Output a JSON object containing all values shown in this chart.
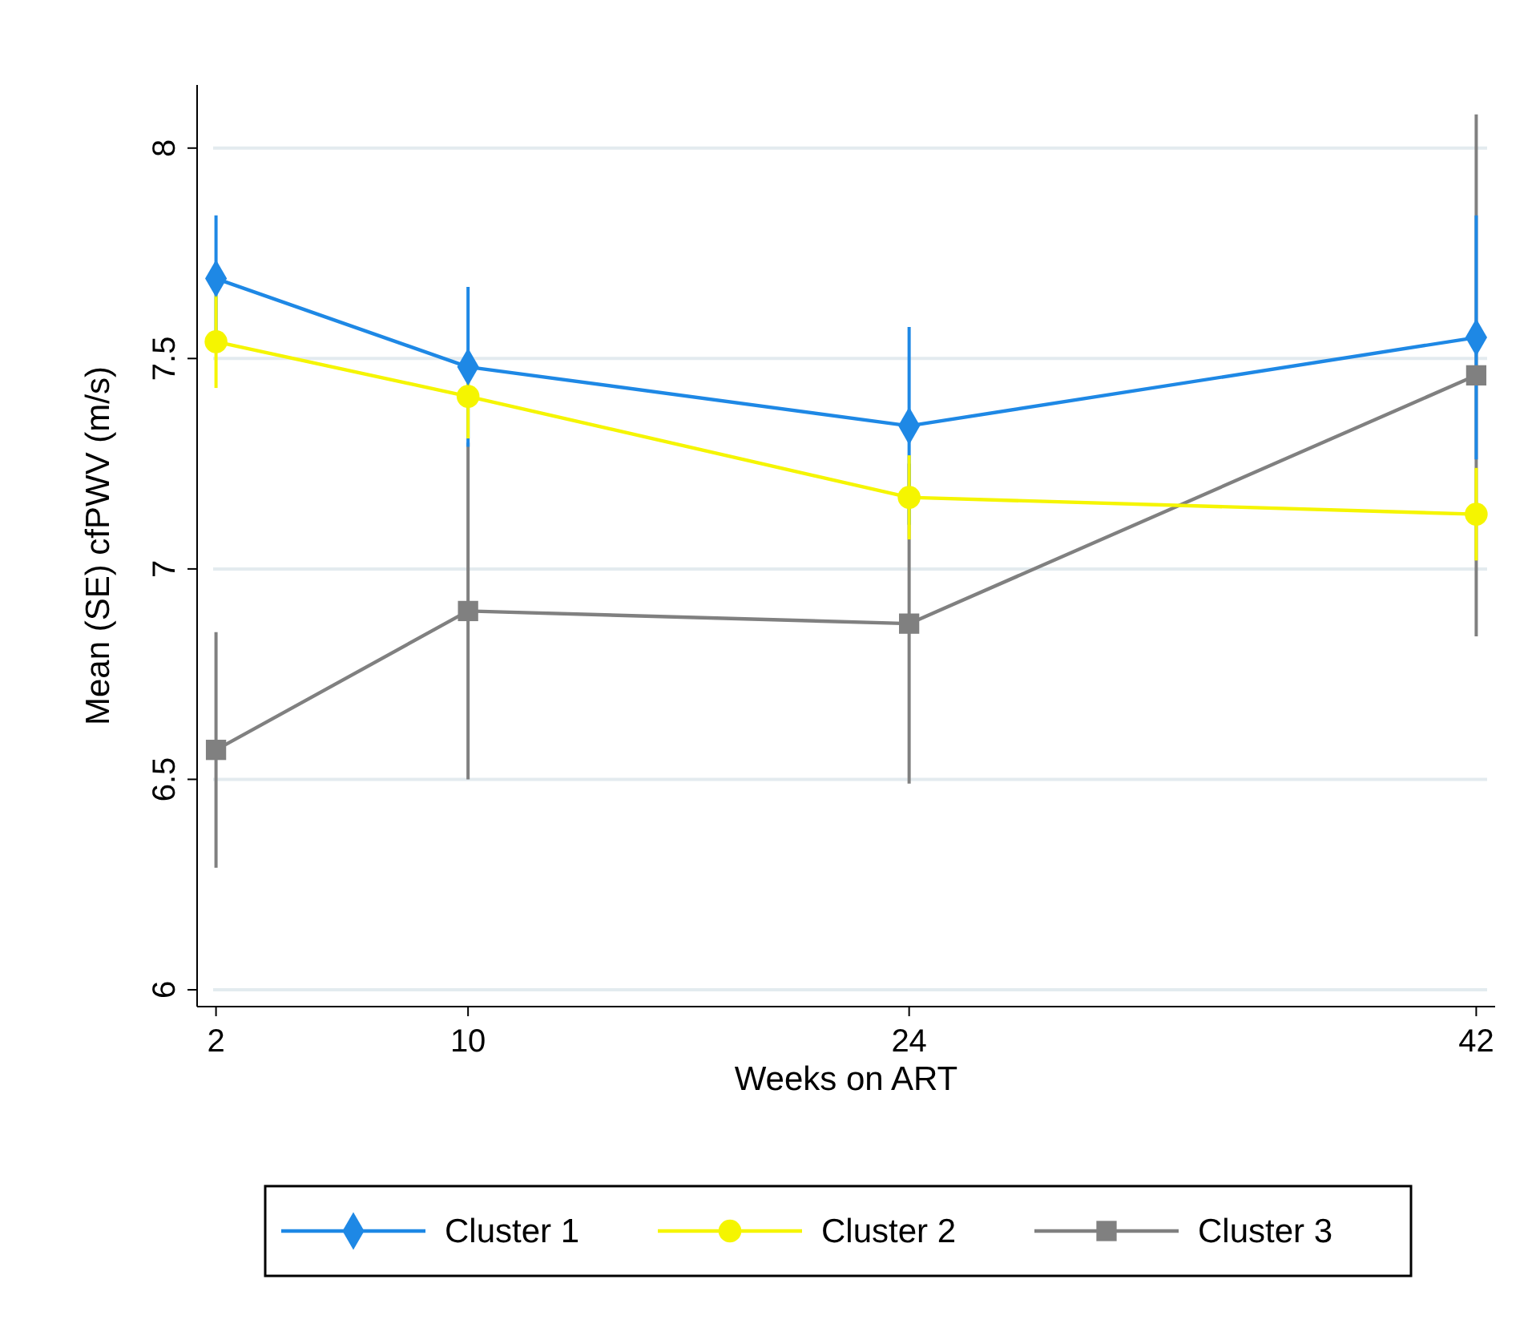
{
  "chart_data": {
    "type": "line",
    "xlabel": "Weeks on ART",
    "ylabel": "Mean (SE) cfPWV (m/s)",
    "x": [
      2,
      10,
      24,
      42
    ],
    "xlim": [
      1.4,
      42.6
    ],
    "xticks": [
      2,
      10,
      24,
      42
    ],
    "ylim": [
      5.96,
      8.15
    ],
    "yticks": [
      6,
      6.5,
      7,
      7.5,
      8
    ],
    "grid": "y",
    "legend": "bottom",
    "series": [
      {
        "name": "Cluster 1",
        "color": "#1e88e5",
        "marker": "diamond",
        "values": [
          7.69,
          7.48,
          7.34,
          7.55
        ],
        "errors": [
          0.15,
          0.19,
          0.235,
          0.29
        ]
      },
      {
        "name": "Cluster 2",
        "color": "#f5f500",
        "marker": "circle",
        "values": [
          7.54,
          7.41,
          7.17,
          7.13
        ],
        "errors": [
          0.11,
          0.1,
          0.1,
          0.11
        ]
      },
      {
        "name": "Cluster 3",
        "color": "#808080",
        "marker": "square",
        "values": [
          6.57,
          6.9,
          6.87,
          7.46
        ],
        "errors": [
          0.28,
          0.4,
          0.38,
          0.62
        ]
      }
    ]
  }
}
